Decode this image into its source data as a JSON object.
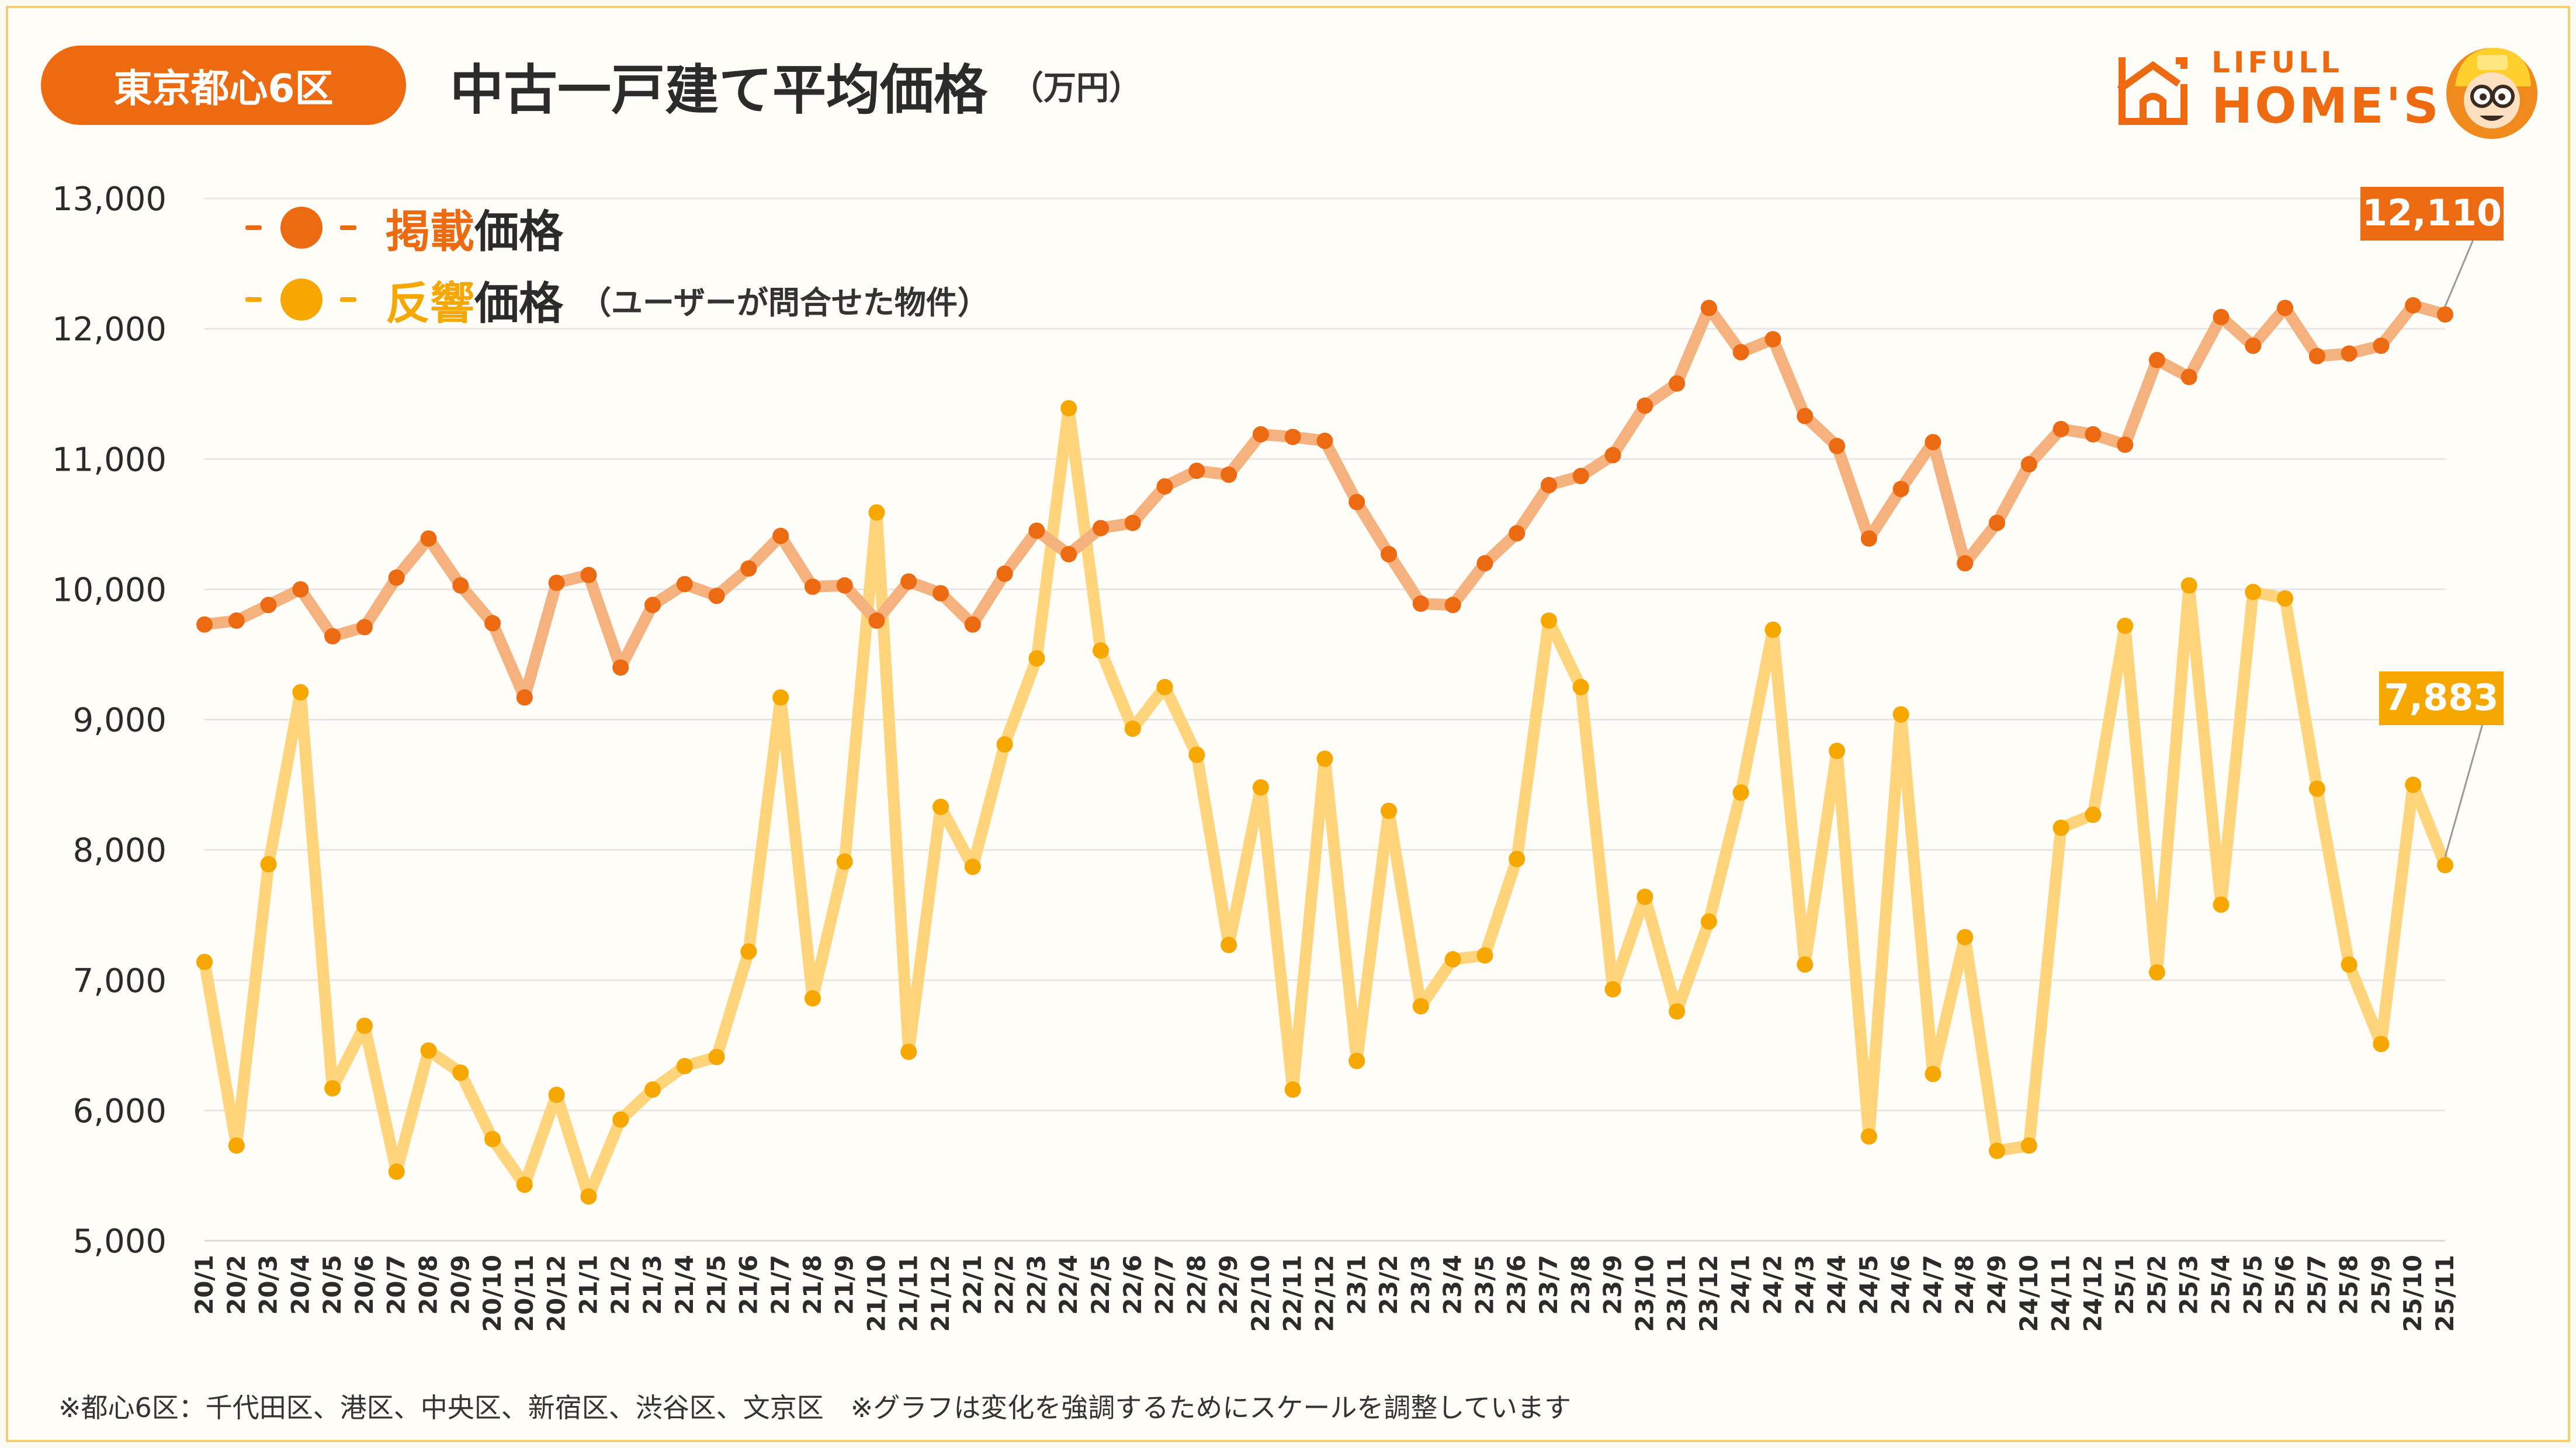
{
  "header": {
    "region_badge": "東京都心6区",
    "title": "中古一戸建て平均価格",
    "unit": "（万円）"
  },
  "logo": {
    "line1": "LIFULL",
    "line2": "HOME'S"
  },
  "legend": [
    {
      "accent": "掲載",
      "text": "価格",
      "note": ""
    },
    {
      "accent": "反響",
      "text": "価格",
      "note": "（ユーザーが問合せた物件）"
    }
  ],
  "footnote": "※都心6区：千代田区、港区、中央区、新宿区、渋谷区、文京区　※グラフは変化を強調するためにスケールを調整しています",
  "colors": {
    "listing_line": "#f5b27f",
    "listing_dot": "#ec6b12",
    "inquiry_line": "#ffd47a",
    "inquiry_dot": "#f6a700",
    "badge": "#ee6a10",
    "border": "#f3cf72"
  },
  "chart_data": {
    "type": "line",
    "title": "中古一戸建て平均価格",
    "ylabel": "（万円）",
    "xlabel": "",
    "ylim": [
      5000,
      13000
    ],
    "yticks": [
      "5,000",
      "6,000",
      "7,000",
      "8,000",
      "9,000",
      "10,000",
      "11,000",
      "12,000",
      "13,000"
    ],
    "grid": true,
    "legend_position": "top-left",
    "categories": [
      "20/1",
      "20/2",
      "20/3",
      "20/4",
      "20/5",
      "20/6",
      "20/7",
      "20/8",
      "20/9",
      "20/10",
      "20/11",
      "20/12",
      "21/1",
      "21/2",
      "21/3",
      "21/4",
      "21/5",
      "21/6",
      "21/7",
      "21/8",
      "21/9",
      "21/10",
      "21/11",
      "21/12",
      "22/1",
      "22/2",
      "22/3",
      "22/4",
      "22/5",
      "22/6",
      "22/7",
      "22/8",
      "22/9",
      "22/10",
      "22/11",
      "22/12",
      "23/1",
      "23/2",
      "23/3",
      "23/4",
      "23/5",
      "23/6",
      "23/7",
      "23/8",
      "23/9",
      "23/10",
      "23/11",
      "23/12",
      "24/1",
      "24/2",
      "24/3",
      "24/4",
      "24/5",
      "24/6",
      "24/7",
      "24/8",
      "24/9",
      "24/10",
      "24/11",
      "24/12",
      "25/1",
      "25/2",
      "25/3",
      "25/4",
      "25/5",
      "25/6",
      "25/7",
      "25/8",
      "25/9",
      "25/10",
      "25/11"
    ],
    "series": [
      {
        "name": "掲載価格",
        "values": [
          9730,
          9760,
          9880,
          10000,
          9640,
          9710,
          10090,
          10390,
          10030,
          9740,
          9170,
          10050,
          10110,
          9400,
          9880,
          10040,
          9950,
          10160,
          10410,
          10020,
          10030,
          9760,
          10060,
          9970,
          9730,
          10120,
          10450,
          10270,
          10470,
          10510,
          10790,
          10910,
          10880,
          11190,
          11170,
          11140,
          10670,
          10270,
          9890,
          9880,
          10200,
          10430,
          10800,
          10870,
          11030,
          11410,
          11580,
          12160,
          11820,
          11920,
          11330,
          11100,
          10390,
          10770,
          11130,
          10200,
          10510,
          10960,
          11230,
          11190,
          11110,
          11760,
          11630,
          12090,
          11870,
          12160,
          11790,
          11810,
          11870,
          12180,
          12110
        ],
        "end_label": "12,110"
      },
      {
        "name": "反響価格",
        "values": [
          7140,
          5730,
          7890,
          9210,
          6170,
          6650,
          5530,
          6460,
          6290,
          5780,
          5430,
          6120,
          5340,
          5930,
          6160,
          6340,
          6410,
          7220,
          9170,
          6860,
          7910,
          10590,
          6450,
          8330,
          7870,
          8810,
          9470,
          11390,
          9530,
          8930,
          9250,
          8730,
          7270,
          8480,
          6160,
          8700,
          6380,
          8300,
          6800,
          7160,
          7190,
          7930,
          9760,
          9250,
          6930,
          7640,
          6760,
          7450,
          8440,
          9690,
          7120,
          8760,
          5800,
          9040,
          6280,
          7330,
          5690,
          5730,
          8170,
          8270,
          9720,
          7060,
          10030,
          7580,
          9980,
          9930,
          8470,
          7120,
          6510,
          8500,
          7883
        ],
        "end_label": "7,883"
      }
    ]
  }
}
